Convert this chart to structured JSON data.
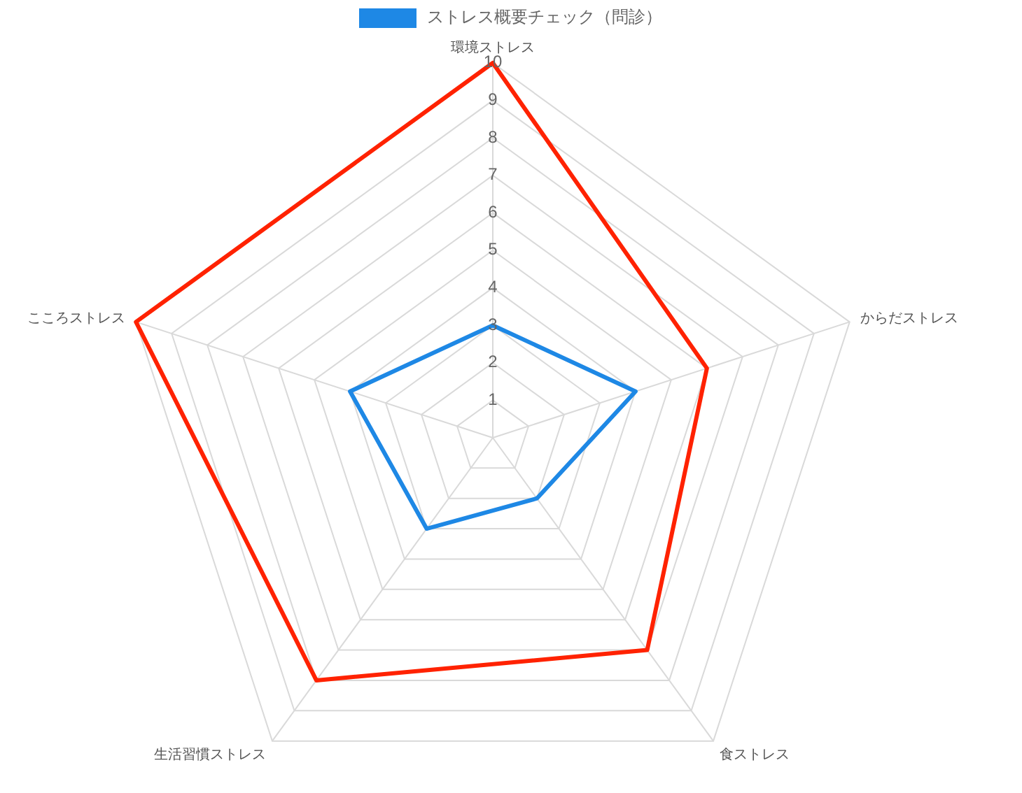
{
  "chart_data": {
    "type": "radar",
    "categories": [
      "環境ストレス",
      "からだストレス",
      "食ストレス",
      "生活習慣ストレス",
      "こころストレス"
    ],
    "series": [
      {
        "name": "ストレス概要チェック（問診）",
        "color": "#1e88e5",
        "values": [
          3,
          4,
          2,
          3,
          4
        ]
      },
      {
        "color": "#ff2200",
        "values": [
          10,
          6,
          7,
          8,
          10
        ]
      }
    ],
    "ylim": [
      0,
      10
    ],
    "yticks": [
      1,
      2,
      3,
      4,
      5,
      6,
      7,
      8,
      9,
      10
    ],
    "grid": true,
    "legend": "top"
  }
}
